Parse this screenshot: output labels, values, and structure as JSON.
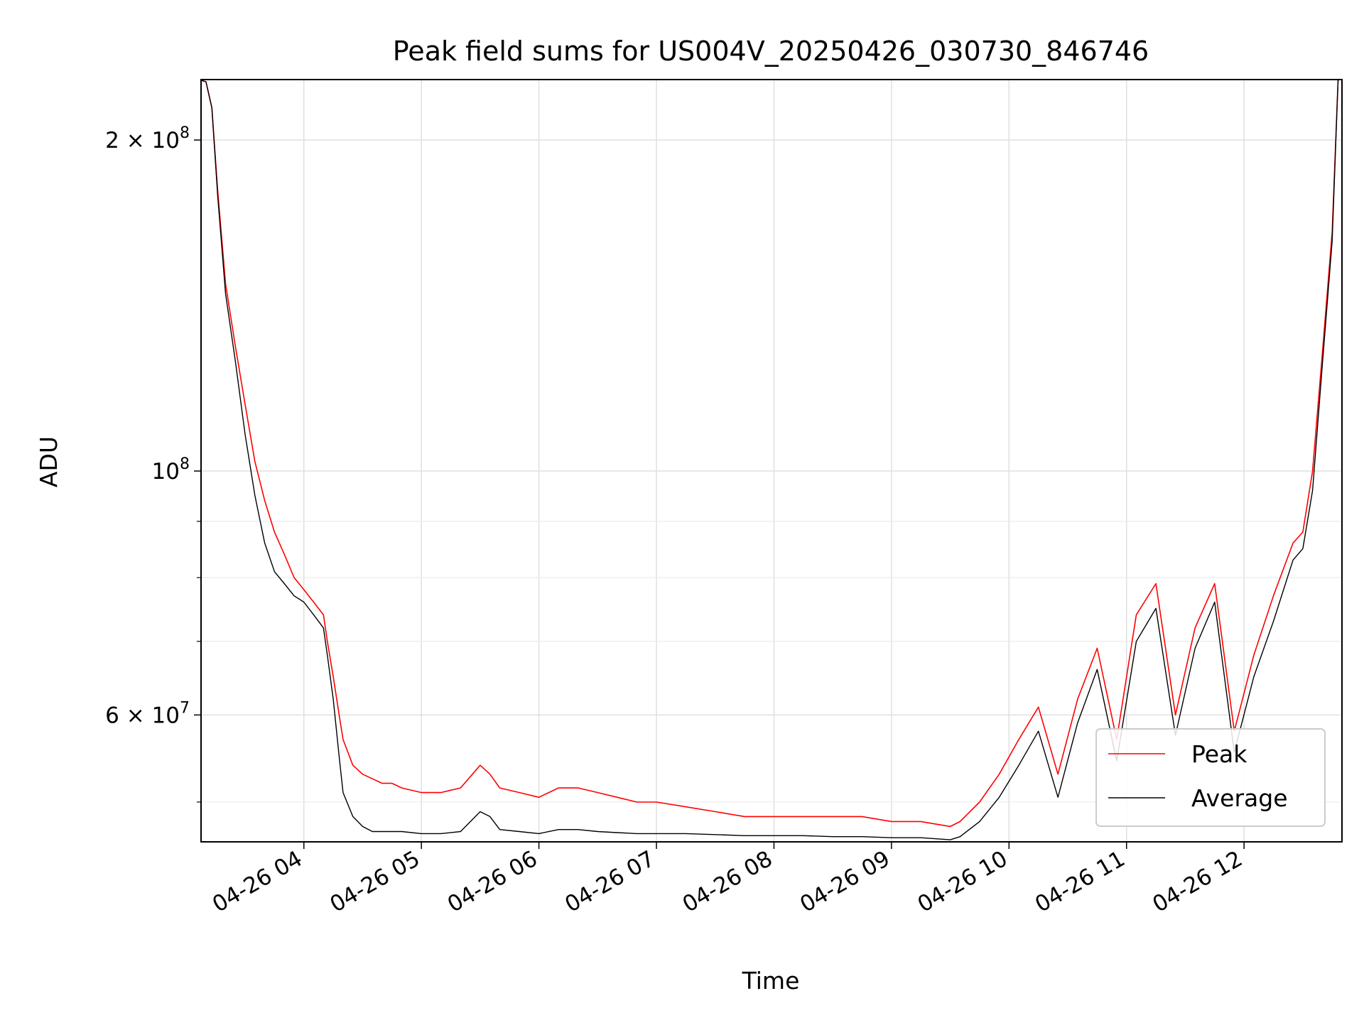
{
  "chart_data": {
    "type": "line",
    "title": "Peak field sums for US004V_20250426_030730_846746",
    "xlabel": "Time",
    "ylabel": "ADU",
    "x_range": [
      "2025-04-26 03:07:30",
      "2025-04-26 12:50:00"
    ],
    "y_scale": "log",
    "ylim": [
      46000000,
      227000000
    ],
    "grid": true,
    "legend_position": "bottom-right",
    "x_ticks": [
      "04-26 04",
      "04-26 05",
      "04-26 06",
      "04-26 07",
      "04-26 08",
      "04-26 09",
      "04-26 10",
      "04-26 11",
      "04-26 12"
    ],
    "x_tick_times": [
      "2025-04-26 04:00",
      "2025-04-26 05:00",
      "2025-04-26 06:00",
      "2025-04-26 07:00",
      "2025-04-26 08:00",
      "2025-04-26 09:00",
      "2025-04-26 10:00",
      "2025-04-26 11:00",
      "2025-04-26 12:00"
    ],
    "y_major_ticks": [
      {
        "value": 200000000,
        "mantissa": "2",
        "exponent": "8"
      },
      {
        "value": 100000000,
        "mantissa": "",
        "exponent": "8"
      },
      {
        "value": 60000000,
        "mantissa": "6",
        "exponent": "7"
      }
    ],
    "y_minor_ticks": [
      50000000,
      70000000,
      80000000,
      90000000
    ],
    "series": [
      {
        "name": "Peak",
        "color": "#ff0000",
        "x": [
          "03:07:30",
          "03:10",
          "03:13",
          "03:16",
          "03:20",
          "03:25",
          "03:30",
          "03:35",
          "03:40",
          "03:45",
          "03:50",
          "03:55",
          "04:00",
          "04:05",
          "04:10",
          "04:12",
          "04:15",
          "04:18",
          "04:20",
          "04:25",
          "04:30",
          "04:35",
          "04:40",
          "04:45",
          "04:50",
          "05:00",
          "05:10",
          "05:20",
          "05:30",
          "05:35",
          "05:40",
          "05:50",
          "06:00",
          "06:10",
          "06:20",
          "06:30",
          "06:40",
          "06:50",
          "07:00",
          "07:15",
          "07:30",
          "07:45",
          "08:00",
          "08:15",
          "08:30",
          "08:45",
          "09:00",
          "09:15",
          "09:30",
          "09:35",
          "09:45",
          "09:55",
          "10:05",
          "10:15",
          "10:25",
          "10:35",
          "10:45",
          "10:55",
          "11:05",
          "11:15",
          "11:25",
          "11:35",
          "11:45",
          "11:55",
          "12:05",
          "12:15",
          "12:25",
          "12:30",
          "12:35",
          "12:40",
          "12:45",
          "12:48"
        ],
        "values": [
          228000000,
          226000000,
          214000000,
          180000000,
          148000000,
          130000000,
          115000000,
          102000000,
          94000000,
          88000000,
          84000000,
          80000000,
          78000000,
          76000000,
          74000000,
          70000000,
          65000000,
          60000000,
          57000000,
          54000000,
          53000000,
          52500000,
          52000000,
          52000000,
          51500000,
          51000000,
          51000000,
          51500000,
          54000000,
          53000000,
          51500000,
          51000000,
          50500000,
          51500000,
          51500000,
          51000000,
          50500000,
          50000000,
          50000000,
          49500000,
          49000000,
          48500000,
          48500000,
          48500000,
          48500000,
          48500000,
          48000000,
          48000000,
          47500000,
          48000000,
          50000000,
          53000000,
          57000000,
          61000000,
          53000000,
          62000000,
          69000000,
          57000000,
          74000000,
          79000000,
          60000000,
          72000000,
          79000000,
          58000000,
          68000000,
          77000000,
          86000000,
          88000000,
          100000000,
          128000000,
          165000000,
          228000000
        ]
      },
      {
        "name": "Average",
        "color": "#000000",
        "x": [
          "03:07:30",
          "03:10",
          "03:13",
          "03:16",
          "03:20",
          "03:25",
          "03:30",
          "03:35",
          "03:40",
          "03:45",
          "03:50",
          "03:55",
          "04:00",
          "04:05",
          "04:10",
          "04:12",
          "04:15",
          "04:18",
          "04:20",
          "04:25",
          "04:30",
          "04:35",
          "04:40",
          "04:45",
          "04:50",
          "05:00",
          "05:10",
          "05:20",
          "05:30",
          "05:35",
          "05:40",
          "05:50",
          "06:00",
          "06:10",
          "06:20",
          "06:30",
          "06:40",
          "06:50",
          "07:00",
          "07:15",
          "07:30",
          "07:45",
          "08:00",
          "08:15",
          "08:30",
          "08:45",
          "09:00",
          "09:15",
          "09:30",
          "09:35",
          "09:45",
          "09:55",
          "10:05",
          "10:15",
          "10:25",
          "10:35",
          "10:45",
          "10:55",
          "11:05",
          "11:15",
          "11:25",
          "11:35",
          "11:45",
          "11:55",
          "12:05",
          "12:15",
          "12:25",
          "12:30",
          "12:35",
          "12:40",
          "12:45",
          "12:48"
        ],
        "values": [
          228000000,
          226000000,
          214000000,
          178000000,
          145000000,
          126000000,
          108000000,
          95000000,
          86000000,
          81000000,
          79000000,
          77000000,
          76000000,
          74000000,
          72000000,
          68000000,
          62000000,
          55000000,
          51000000,
          48500000,
          47500000,
          47000000,
          47000000,
          47000000,
          47000000,
          46800000,
          46800000,
          47000000,
          49000000,
          48500000,
          47200000,
          47000000,
          46800000,
          47200000,
          47200000,
          47000000,
          46900000,
          46800000,
          46800000,
          46800000,
          46700000,
          46600000,
          46600000,
          46600000,
          46500000,
          46500000,
          46400000,
          46400000,
          46200000,
          46500000,
          48000000,
          50500000,
          54000000,
          58000000,
          50500000,
          59000000,
          66000000,
          54500000,
          70000000,
          75000000,
          57500000,
          69000000,
          76000000,
          55500000,
          65000000,
          73000000,
          83000000,
          85000000,
          96000000,
          125000000,
          162000000,
          228000000
        ]
      }
    ]
  }
}
